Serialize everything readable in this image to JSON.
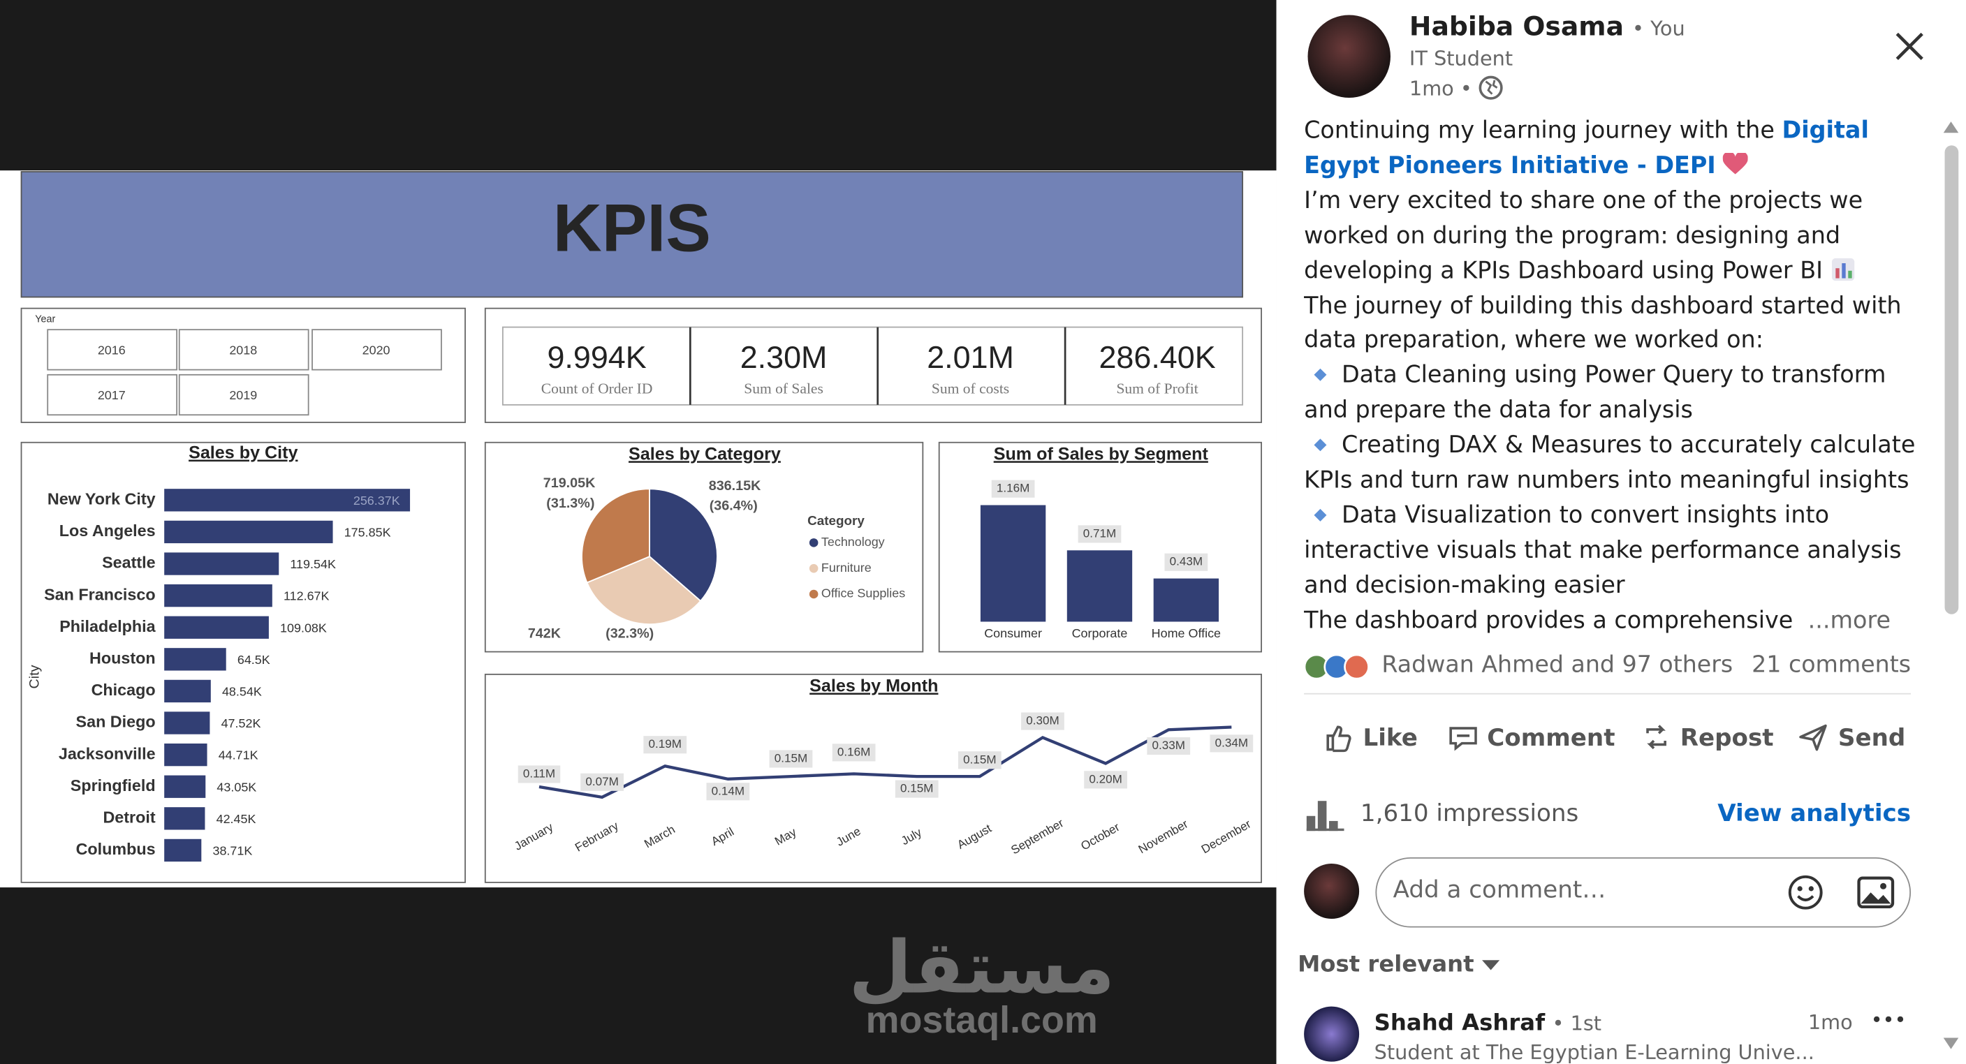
{
  "dashboard": {
    "title": "KPIS",
    "slicer": {
      "label": "Year",
      "options": [
        "2016",
        "2018",
        "2020",
        "2017",
        "2019"
      ]
    },
    "cards": [
      {
        "value": "9.994K",
        "label": "Count of Order ID"
      },
      {
        "value": "2.30M",
        "label": "Sum of Sales"
      },
      {
        "value": "2.01M",
        "label": "Sum of costs"
      },
      {
        "value": "286.40K",
        "label": "Sum of Profit"
      }
    ]
  },
  "chart_data": [
    {
      "type": "bar",
      "orientation": "horizontal",
      "title": "Sales by City",
      "y_label": "City",
      "categories": [
        "New York City",
        "Los Angeles",
        "Seattle",
        "San Francisco",
        "Philadelphia",
        "Houston",
        "Chicago",
        "San Diego",
        "Jacksonville",
        "Springfield",
        "Detroit",
        "Columbus"
      ],
      "values": [
        256370,
        175850,
        119540,
        112670,
        109080,
        64500,
        48540,
        47520,
        44710,
        43050,
        42450,
        38710
      ],
      "value_labels": [
        "256.37K",
        "175.85K",
        "119.54K",
        "112.67K",
        "109.08K",
        "64.5K",
        "48.54K",
        "47.52K",
        "44.71K",
        "43.05K",
        "42.45K",
        "38.71K"
      ],
      "color": "#323f74"
    },
    {
      "type": "pie",
      "title": "Sales by Category",
      "legend_title": "Category",
      "categories": [
        "Technology",
        "Furniture",
        "Office Supplies"
      ],
      "values": [
        836150,
        742000,
        719050
      ],
      "value_labels": [
        "836.15K",
        "742K",
        "719.05K"
      ],
      "percent_labels": [
        "(36.4%)",
        "(32.3%)",
        "(31.3%)"
      ],
      "colors": [
        "#323f74",
        "#e9cbb3",
        "#c07a4c"
      ]
    },
    {
      "type": "bar",
      "title": "Sum of Sales by Segment",
      "categories": [
        "Consumer",
        "Corporate",
        "Home Office"
      ],
      "values": [
        1160000,
        710000,
        430000
      ],
      "value_labels": [
        "1.16M",
        "0.71M",
        "0.43M"
      ],
      "color": "#323f74"
    },
    {
      "type": "line",
      "title": "Sales by Month",
      "categories": [
        "January",
        "February",
        "March",
        "April",
        "May",
        "June",
        "July",
        "August",
        "September",
        "October",
        "November",
        "December"
      ],
      "values": [
        110000,
        70000,
        190000,
        140000,
        150000,
        160000,
        150000,
        150000,
        300000,
        200000,
        330000,
        340000
      ],
      "value_labels": [
        "0.11M",
        "0.07M",
        "0.19M",
        "0.14M",
        "0.15M",
        "0.16M",
        "0.15M",
        "0.15M",
        "0.30M",
        "0.20M",
        "0.33M",
        "0.34M"
      ],
      "color": "#323f74"
    }
  ],
  "watermark": {
    "arabic": "مستقل",
    "site": "mostaql.com"
  },
  "post": {
    "author": {
      "name": "Habiba Osama",
      "badge": "• You",
      "headline": "IT Student",
      "time": "1mo •"
    },
    "body": {
      "intro": "Continuing my learning journey with the ",
      "link": "Digital Egypt Pioneers Initiative - DEPI",
      "p2": "I’m very excited to share one of the projects we worked on during the program: designing and developing a KPIs Dashboard using Power BI",
      "p3": "The journey of building this dashboard started with data preparation, where we worked on:",
      "bullets": [
        "Data Cleaning using Power Query to transform and prepare the data for analysis",
        "Creating DAX & Measures to accurately calculate KPIs and turn raw numbers into meaningful insights",
        "Data Visualization to convert insights into interactive visuals that make performance analysis and decision-making easier"
      ],
      "p4": "The dashboard provides a comprehensive",
      "more": "...more"
    },
    "reactions": "Radwan Ahmed and 97 others",
    "comments_count": "21 comments",
    "actions": [
      "Like",
      "Comment",
      "Repost",
      "Send"
    ],
    "impressions": "1,610 impressions",
    "analytics": "View analytics",
    "comment_placeholder": "Add a comment…",
    "sort": "Most relevant",
    "comment": {
      "name": "Shahd Ashraf",
      "degree": "• 1st",
      "time": "1mo",
      "menu": "•••",
      "headline": "Student at The Egyptian E-Learning Unive..."
    }
  }
}
